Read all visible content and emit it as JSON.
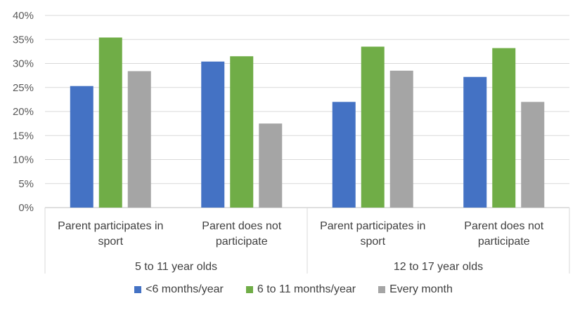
{
  "chart_data": {
    "type": "bar",
    "y_axis": {
      "min": 0,
      "max": 40,
      "tick_labels": [
        "0%",
        "5%",
        "10%",
        "15%",
        "20%",
        "25%",
        "30%",
        "35%",
        "40%"
      ]
    },
    "groups": [
      {
        "label": "5 to 11 year olds",
        "categories": [
          "Parent participates in sport",
          "Parent does not participate"
        ]
      },
      {
        "label": "12 to 17 year olds",
        "categories": [
          "Parent participates in sport",
          "Parent does not participate"
        ]
      }
    ],
    "series": [
      {
        "name": "<6 months/year",
        "color": "#4472C4",
        "values": [
          25.3,
          30.4,
          22.0,
          27.2
        ]
      },
      {
        "name": "6 to 11 months/year",
        "color": "#70AD47",
        "values": [
          35.4,
          31.5,
          33.5,
          33.2
        ]
      },
      {
        "name": "Every month",
        "color": "#A5A5A5",
        "values": [
          28.4,
          17.5,
          28.5,
          22.0
        ]
      }
    ],
    "grid": true,
    "legend_position": "bottom"
  }
}
